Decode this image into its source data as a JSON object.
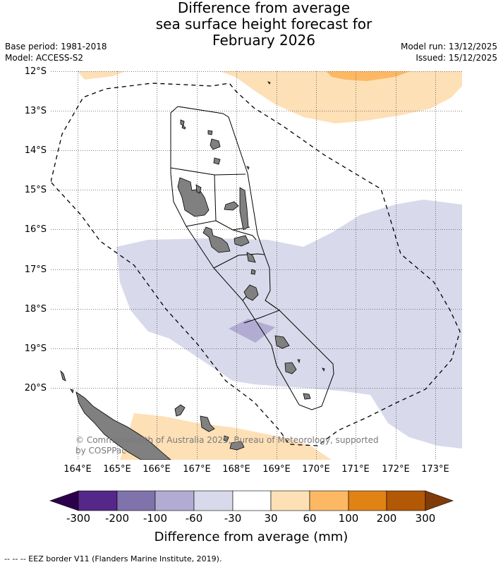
{
  "title": {
    "line1": "Difference from average",
    "line2": "sea surface height forecast for",
    "line3": "February 2026"
  },
  "meta": {
    "base_period": "Base period: 1981-2018",
    "model": "Model: ACCESS-S2",
    "model_run": "Model run: 13/12/2025",
    "issued": "Issued: 15/12/2025"
  },
  "map": {
    "lat_labels": [
      "12°S",
      "13°S",
      "14°S",
      "15°S",
      "16°S",
      "17°S",
      "18°S",
      "19°S",
      "20°S"
    ],
    "lon_labels": [
      "164°E",
      "165°E",
      "166°E",
      "167°E",
      "168°E",
      "169°E",
      "170°E",
      "171°E",
      "172°E",
      "173°E"
    ],
    "copyright_line1": "© Commonwealth of Australia 2025, Bureau of Meteorology, supported",
    "copyright_line2": "by COSPPac"
  },
  "colorbar": {
    "ticks": [
      "-300",
      "-200",
      "-100",
      "-60",
      "-30",
      "30",
      "60",
      "100",
      "200",
      "300"
    ],
    "colors": [
      "#2d004b",
      "#542788",
      "#8073ac",
      "#b2abd2",
      "#d8daeb",
      "#ffffff",
      "#fee0b6",
      "#fdb863",
      "#e08214",
      "#b35806",
      "#7f3b08"
    ],
    "title": "Difference from average (mm)"
  },
  "legend": {
    "eez_label": "--  --  -- EEZ border V11 (Flanders Marine Institute, 2019)."
  }
}
